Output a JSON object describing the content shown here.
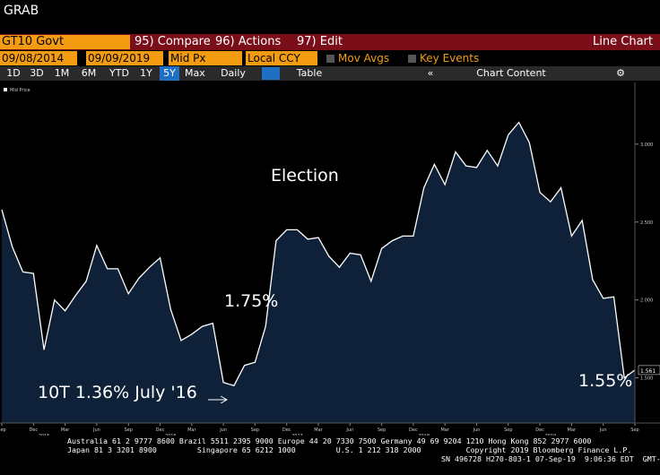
{
  "header": {
    "title": "GRAB"
  },
  "toolbar": {
    "security": "GT10 Govt",
    "buttons": [
      "95) Compare",
      "96) Actions",
      "97) Edit"
    ],
    "view": "Line Chart"
  },
  "settings": {
    "start": "09/08/2014",
    "end": "09/09/2019",
    "field": "Mid Px",
    "currency": "Local CCY",
    "options": [
      "Mov Avgs",
      "Key Events"
    ]
  },
  "periods": {
    "items": [
      "1D",
      "3D",
      "1M",
      "6M",
      "YTD",
      "1Y",
      "5Y",
      "Max"
    ],
    "selected": "5Y",
    "frequency": "Daily",
    "table": "Table",
    "content": "Chart Content"
  },
  "chart_data": {
    "type": "line",
    "legend": "Mid Price",
    "series": [
      {
        "name": "Mid Price",
        "color": "#ffffff",
        "values": [
          2.58,
          2.34,
          2.18,
          2.17,
          1.68,
          2.0,
          1.93,
          2.03,
          2.12,
          2.35,
          2.2,
          2.2,
          2.04,
          2.14,
          2.21,
          2.27,
          1.94,
          1.74,
          1.78,
          1.83,
          1.85,
          1.47,
          1.45,
          1.58,
          1.6,
          1.83,
          2.38,
          2.45,
          2.45,
          2.39,
          2.4,
          2.28,
          2.21,
          2.3,
          2.29,
          2.12,
          2.33,
          2.38,
          2.41,
          2.41,
          2.72,
          2.87,
          2.74,
          2.95,
          2.86,
          2.85,
          2.96,
          2.86,
          3.06,
          3.14,
          3.01,
          2.69,
          2.63,
          2.72,
          2.41,
          2.51,
          2.13,
          2.01,
          2.02,
          1.5,
          1.55
        ]
      }
    ],
    "categories": [
      "Sep",
      null,
      null,
      "Dec",
      null,
      null,
      "Mar",
      null,
      null,
      "Jun",
      null,
      null,
      "Sep",
      null,
      null,
      "Dec",
      null,
      null,
      "Mar",
      null,
      null,
      "Jun",
      null,
      null,
      "Sep",
      null,
      null,
      "Dec",
      null,
      null,
      "Mar",
      null,
      null,
      "Jun",
      null,
      null,
      "Sep",
      null,
      null,
      "Dec",
      null,
      null,
      "Mar",
      null,
      null,
      "Jun",
      null,
      null,
      "Sep",
      null,
      null,
      "Dec",
      null,
      null,
      "Mar",
      null,
      null,
      "Jun",
      null,
      null,
      "Sep"
    ],
    "years": [
      "2015",
      "2016",
      "2017",
      "2018",
      "2019"
    ],
    "ylim": [
      1.21,
      3.35
    ],
    "yticks": [
      {
        "value": 1.5,
        "label": "1.500"
      },
      {
        "value": 2,
        "label": "2.000"
      },
      {
        "value": 2.5,
        "label": "2.500"
      },
      {
        "value": 3,
        "label": "3.000"
      }
    ],
    "area_color": "#0e2138",
    "last_label": "1.561",
    "annotations": [
      "Election",
      "1.75%",
      "10T 1.36% July '16",
      "1.55%"
    ]
  },
  "footer": {
    "lines": [
      "Australia 61 2 9777 8600 Brazil 5511 2395 9000 Europe 44 20 7330 7500 Germany 49 69 9204 1210 Hong Kong 852 2977 6000",
      "Japan 81 3 3201 8900         Singapore 65 6212 1000         U.S. 1 212 318 2000          Copyright 2019 Bloomberg Finance L.P.",
      "SN 496728 H270-803-1 07-Sep-19  9:06:36 EDT  GMT-4:00"
    ]
  }
}
